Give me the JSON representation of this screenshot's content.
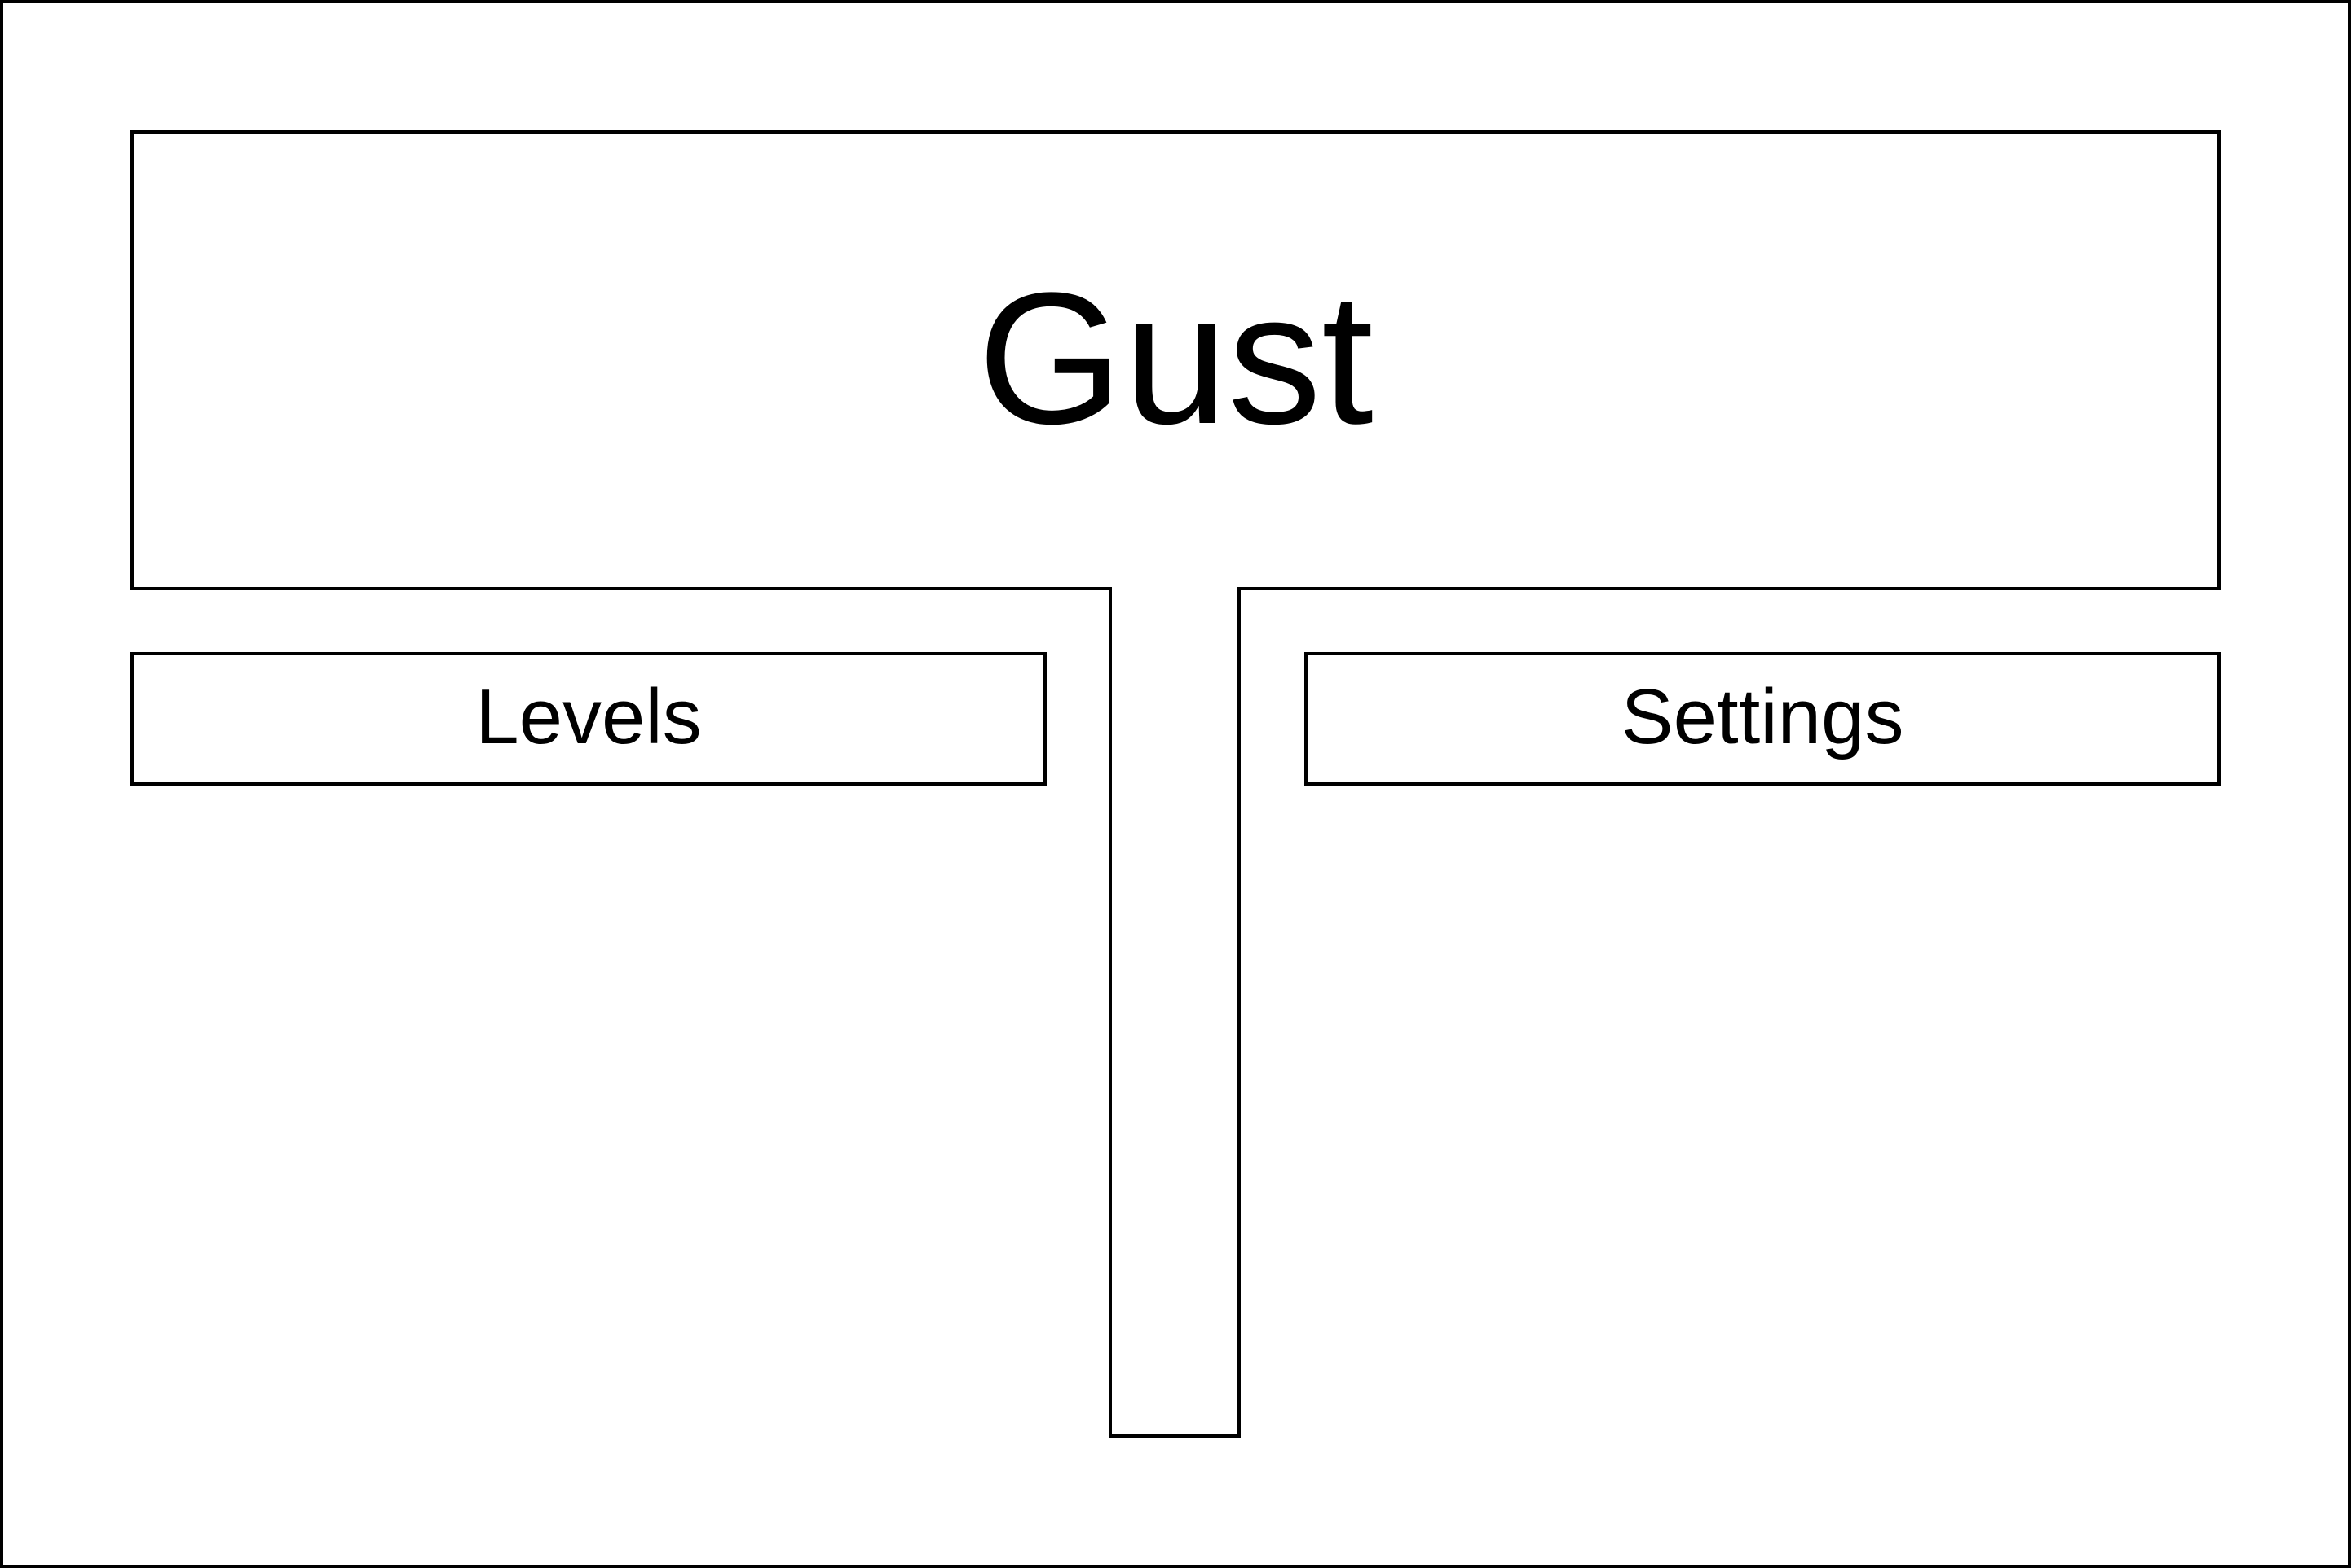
{
  "game": {
    "title": "Gust"
  },
  "menu": {
    "levels_label": "Levels",
    "settings_label": "Settings"
  },
  "colors": {
    "stroke": "#000000",
    "background": "#ffffff"
  }
}
